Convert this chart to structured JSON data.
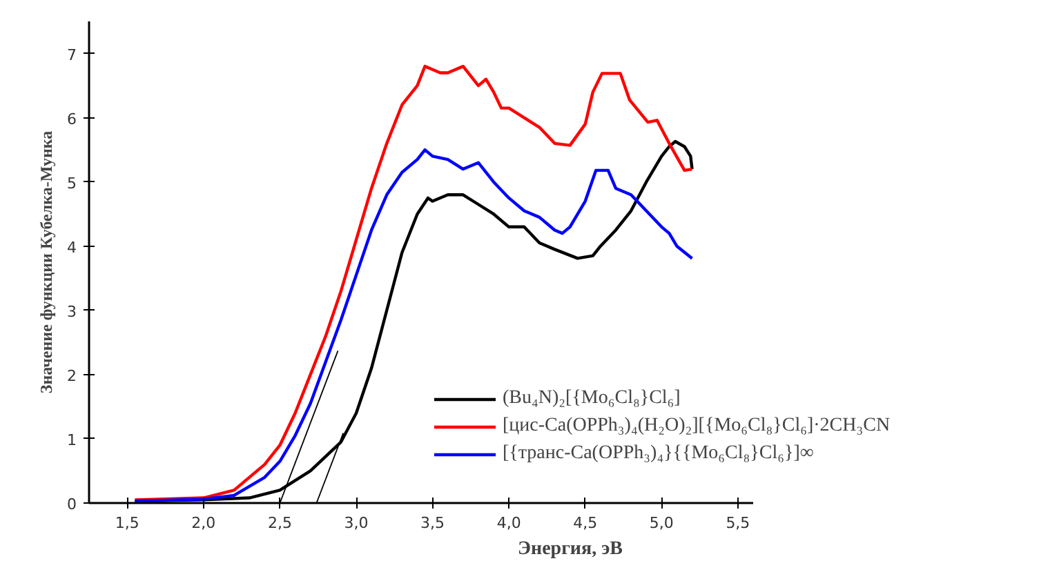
{
  "chart_data": {
    "type": "line",
    "xlabel": "Энергия, эВ",
    "ylabel": "Значение функции Кубелка-Мунка",
    "xlim": [
      1.25,
      5.6
    ],
    "ylim": [
      0,
      7.5
    ],
    "xticks": [
      {
        "value": 1.5,
        "label": "1,5"
      },
      {
        "value": 2.0,
        "label": "2,0"
      },
      {
        "value": 2.5,
        "label": "2,5"
      },
      {
        "value": 3.0,
        "label": "3,0"
      },
      {
        "value": 3.5,
        "label": "3,5"
      },
      {
        "value": 4.0,
        "label": "4,0"
      },
      {
        "value": 4.5,
        "label": "4,5"
      },
      {
        "value": 5.0,
        "label": "5,0"
      },
      {
        "value": 5.5,
        "label": "5,5"
      }
    ],
    "yticks": [
      0,
      1,
      2,
      3,
      4,
      5,
      6,
      7
    ],
    "grid": false,
    "legend": "right",
    "series": [
      {
        "name": "(Bu₄N)₂[{Mo₆Cl₈}Cl₆]",
        "color": "#000000",
        "x": [
          1.55,
          2.0,
          2.3,
          2.5,
          2.7,
          2.9,
          3.0,
          3.1,
          3.2,
          3.3,
          3.4,
          3.47,
          3.5,
          3.6,
          3.7,
          3.8,
          3.9,
          4.0,
          4.1,
          4.2,
          4.3,
          4.45,
          4.55,
          4.6,
          4.7,
          4.8,
          4.9,
          5.0,
          5.05,
          5.09,
          5.15,
          5.19,
          5.2
        ],
        "values": [
          0.03,
          0.05,
          0.08,
          0.2,
          0.5,
          0.95,
          1.4,
          2.1,
          3.0,
          3.9,
          4.5,
          4.75,
          4.7,
          4.8,
          4.8,
          4.65,
          4.5,
          4.3,
          4.3,
          4.05,
          3.95,
          3.81,
          3.85,
          4.0,
          4.25,
          4.55,
          5.0,
          5.4,
          5.55,
          5.63,
          5.55,
          5.4,
          5.2
        ]
      },
      {
        "name": "[цис-Ca(OPPh₃)₄(H₂O)₂][{Mo₆Cl₈}Cl₆]·2CH₃CN",
        "color": "#ff0000",
        "x": [
          1.55,
          2.0,
          2.2,
          2.4,
          2.5,
          2.6,
          2.7,
          2.8,
          2.9,
          3.0,
          3.1,
          3.2,
          3.3,
          3.4,
          3.45,
          3.5,
          3.55,
          3.6,
          3.7,
          3.8,
          3.85,
          3.9,
          3.95,
          4.0,
          4.1,
          4.2,
          4.3,
          4.4,
          4.5,
          4.55,
          4.61,
          4.73,
          4.79,
          4.91,
          4.97,
          5.05,
          5.15,
          5.2
        ],
        "values": [
          0.05,
          0.08,
          0.2,
          0.6,
          0.9,
          1.4,
          2.0,
          2.6,
          3.3,
          4.1,
          4.9,
          5.6,
          6.2,
          6.5,
          6.8,
          6.75,
          6.7,
          6.7,
          6.8,
          6.5,
          6.6,
          6.4,
          6.15,
          6.15,
          6.0,
          5.85,
          5.6,
          5.57,
          5.9,
          6.4,
          6.69,
          6.69,
          6.28,
          5.93,
          5.96,
          5.6,
          5.18,
          5.2
        ]
      },
      {
        "name": "[{транс-Ca(OPPh₃)₄}{{Mo₆Cl₈}Cl₆}]∞",
        "color": "#0000ff",
        "x": [
          1.55,
          2.0,
          2.2,
          2.4,
          2.5,
          2.6,
          2.7,
          2.8,
          2.9,
          3.0,
          3.1,
          3.2,
          3.3,
          3.4,
          3.45,
          3.5,
          3.6,
          3.7,
          3.8,
          3.9,
          4.0,
          4.1,
          4.2,
          4.3,
          4.35,
          4.4,
          4.5,
          4.57,
          4.65,
          4.7,
          4.8,
          4.9,
          5.0,
          5.05,
          5.1,
          5.2
        ],
        "values": [
          0.03,
          0.06,
          0.12,
          0.4,
          0.65,
          1.05,
          1.55,
          2.2,
          2.85,
          3.55,
          4.25,
          4.8,
          5.15,
          5.35,
          5.5,
          5.4,
          5.35,
          5.2,
          5.3,
          5.0,
          4.75,
          4.55,
          4.45,
          4.25,
          4.2,
          4.3,
          4.7,
          5.18,
          5.18,
          4.9,
          4.8,
          4.55,
          4.3,
          4.2,
          4.0,
          3.81
        ]
      },
      {
        "color": "#000000",
        "x": [
          2.5,
          2.88
        ],
        "values": [
          0,
          2.37
        ]
      },
      {
        "color": "#000000",
        "x": [
          2.74,
          2.915
        ],
        "values": [
          0,
          1.09
        ]
      }
    ]
  }
}
